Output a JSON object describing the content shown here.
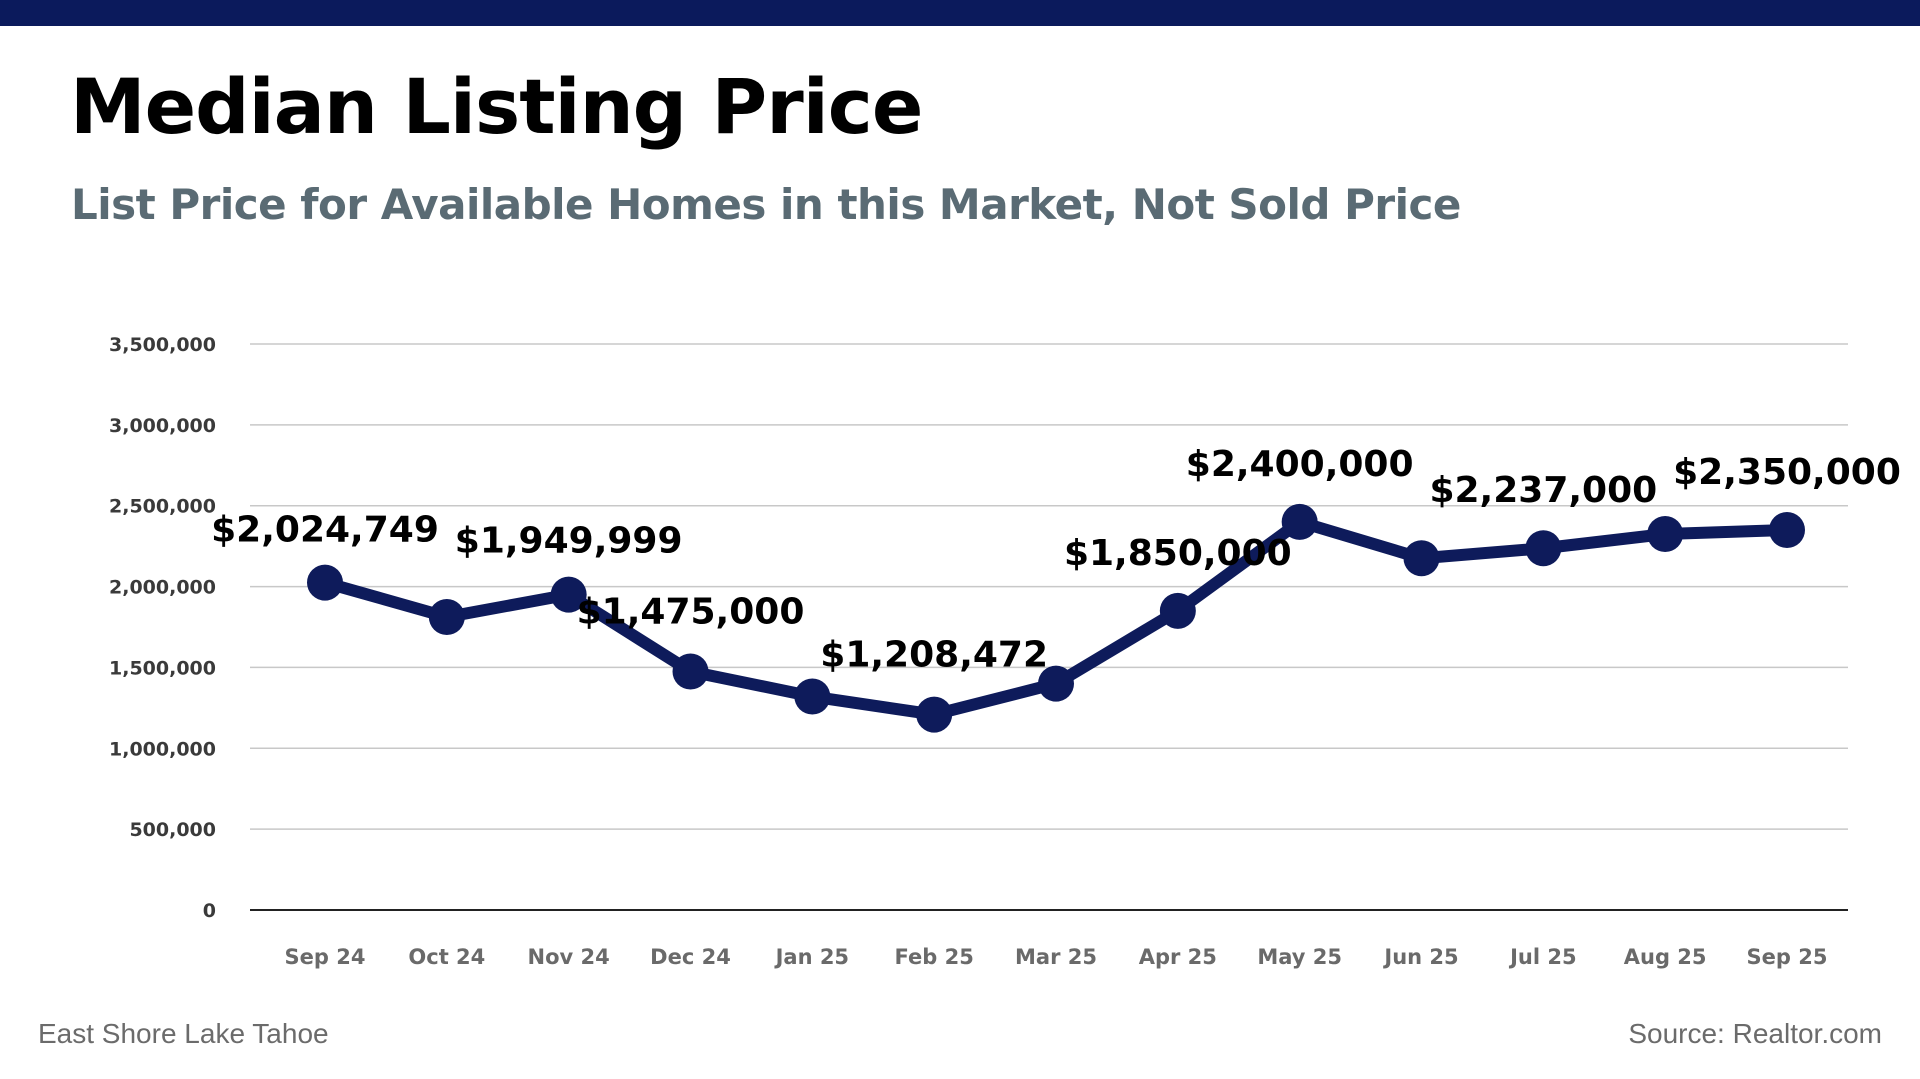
{
  "header": {
    "title": "Median Listing Price",
    "subtitle": "List Price for Available Homes in this Market, Not Sold Price"
  },
  "footer": {
    "location": "East Shore Lake Tahoe",
    "source": "Source: Realtor.com"
  },
  "colors": {
    "top_bar": "#0b1a5c",
    "line": "#0e1b5b",
    "grid": "#c8c8c8",
    "subtitle": "#5a6b74"
  },
  "chart_data": {
    "type": "line",
    "title": "Median Listing Price",
    "subtitle": "List Price for Available Homes in this Market, Not Sold Price",
    "categories": [
      "Sep 24",
      "Oct 24",
      "Nov 24",
      "Dec 24",
      "Jan 25",
      "Feb 25",
      "Mar 25",
      "Apr 25",
      "May 25",
      "Jun 25",
      "Jul 25",
      "Aug 25",
      "Sep 25"
    ],
    "series": [
      {
        "values": [
          2024749,
          1812000,
          1949999,
          1475000,
          1320000,
          1208472,
          1400000,
          1850000,
          2400000,
          2175000,
          2237000,
          2325000,
          2350000
        ],
        "data_labels": [
          "$2,024,749",
          "",
          "$1,949,999",
          "$1,475,000",
          "",
          "$1,208,472",
          "",
          "$1,850,000",
          "$2,400,000",
          "",
          "$2,237,000",
          "",
          "$2,350,000"
        ]
      }
    ],
    "yticks": [
      0,
      500000,
      1000000,
      1500000,
      2000000,
      2500000,
      3000000,
      3500000
    ],
    "ytick_labels": [
      "0",
      "500,000",
      "1,000,000",
      "1,500,000",
      "2,000,000",
      "2,500,000",
      "3,000,000",
      "3,500,000"
    ],
    "ylim": [
      0,
      3500000
    ],
    "grid": true,
    "legend": "none"
  }
}
